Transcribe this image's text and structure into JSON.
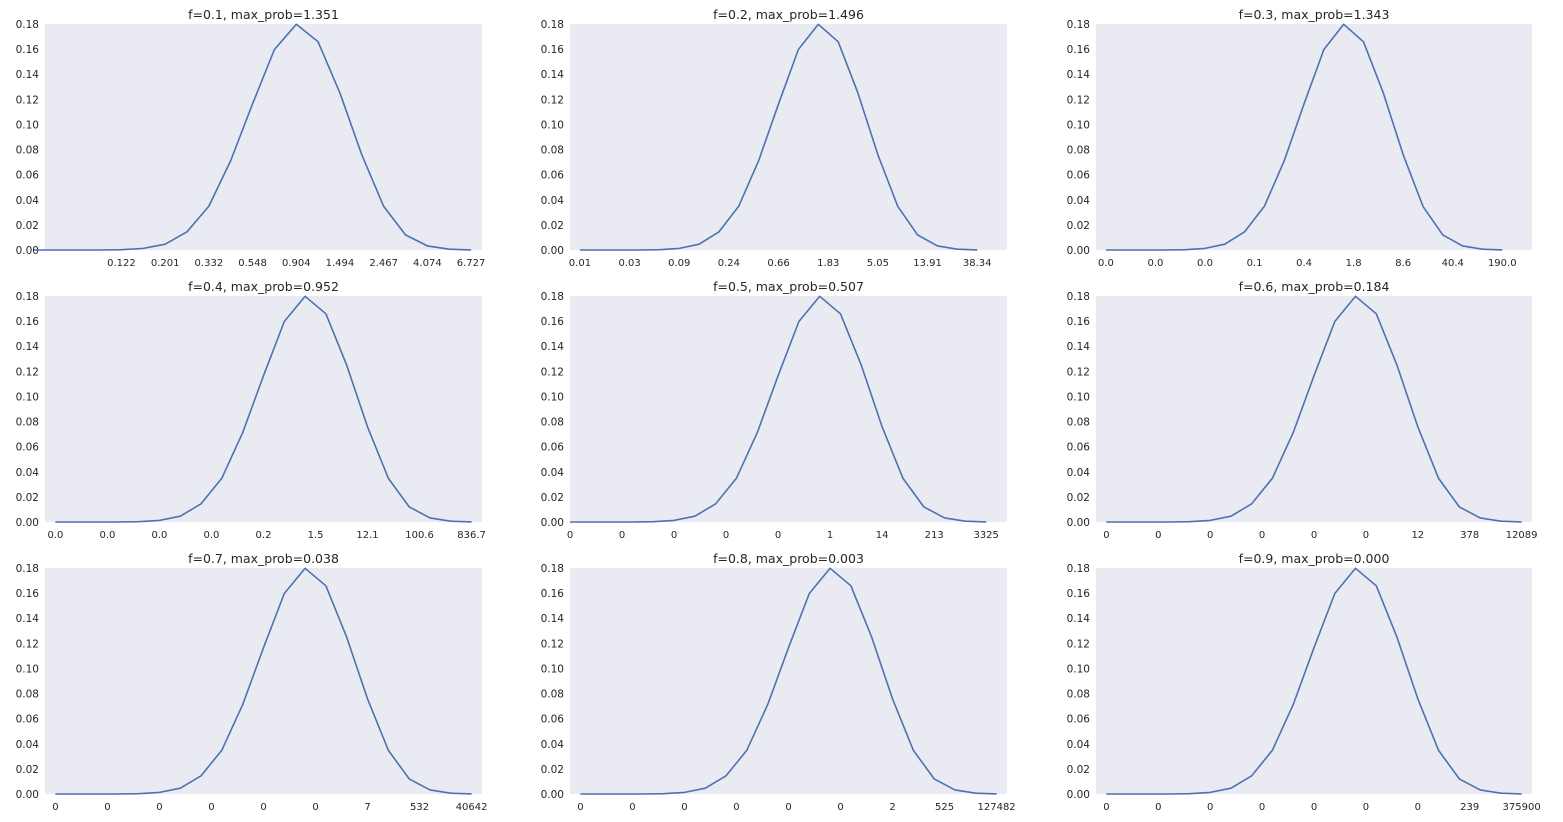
{
  "figure": {
    "colors": {
      "line": "#4c72b0",
      "axes_bg": "#eaeaf2"
    }
  },
  "chart_data": [
    {
      "type": "line",
      "title": "f=0.1, max_prob=1.351",
      "x_tick_labels": [
        "0.122",
        "0.201",
        "0.332",
        "0.548",
        "0.904",
        "1.494",
        "2.467",
        "4.074",
        "6.727"
      ],
      "y_ticks": [
        "0.00",
        "0.02",
        "0.04",
        "0.06",
        "0.08",
        "0.10",
        "0.12",
        "0.14",
        "0.16",
        "0.18"
      ],
      "y": [
        0,
        0,
        0,
        0,
        0.0002,
        0.0013,
        0.0046,
        0.0145,
        0.035,
        0.0712,
        0.1165,
        0.1597,
        0.1798,
        0.1658,
        0.1249,
        0.0758,
        0.0347,
        0.012,
        0.0033,
        0.0006,
        0.0001
      ],
      "xlim": [
        -5.5,
        14.5
      ],
      "ylim": [
        0,
        0.18
      ],
      "grid": false
    },
    {
      "type": "line",
      "title": "f=0.2, max_prob=1.496",
      "x_tick_labels": [
        "0.01",
        "0.03",
        "0.09",
        "0.24",
        "0.66",
        "1.83",
        "5.05",
        "13.91",
        "38.34"
      ],
      "y_ticks": [
        "0.00",
        "0.02",
        "0.04",
        "0.06",
        "0.08",
        "0.10",
        "0.12",
        "0.14",
        "0.16",
        "0.18"
      ],
      "y": [
        0,
        0,
        0,
        0,
        0.0002,
        0.0013,
        0.0046,
        0.0145,
        0.035,
        0.0712,
        0.1165,
        0.1597,
        0.1798,
        0.1658,
        0.1249,
        0.0758,
        0.0347,
        0.012,
        0.0033,
        0.0006,
        0.0001
      ],
      "xlim": [
        -0.5,
        21.5
      ],
      "ylim": [
        0,
        0.18
      ],
      "grid": false
    },
    {
      "type": "line",
      "title": "f=0.3, max_prob=1.343",
      "x_tick_labels": [
        "0.0",
        "0.0",
        "0.0",
        "0.1",
        "0.4",
        "1.8",
        "8.6",
        "40.4",
        "190.0"
      ],
      "y_ticks": [
        "0.00",
        "0.02",
        "0.04",
        "0.06",
        "0.08",
        "0.10",
        "0.12",
        "0.14",
        "0.16",
        "0.18"
      ],
      "y": [
        0,
        0,
        0,
        0,
        0.0002,
        0.0013,
        0.0046,
        0.0145,
        0.035,
        0.0712,
        0.1165,
        0.1597,
        0.1798,
        0.1658,
        0.1249,
        0.0758,
        0.0347,
        0.012,
        0.0033,
        0.0006,
        0.0001
      ],
      "xlim": [
        -0.5,
        21.5
      ],
      "ylim": [
        0,
        0.18
      ],
      "grid": false
    },
    {
      "type": "line",
      "title": "f=0.4, max_prob=0.952",
      "x_tick_labels": [
        "0.0",
        "0.0",
        "0.0",
        "0.0",
        "0.2",
        "1.5",
        "12.1",
        "100.6",
        "836.7"
      ],
      "y_ticks": [
        "0.00",
        "0.02",
        "0.04",
        "0.06",
        "0.08",
        "0.10",
        "0.12",
        "0.14",
        "0.16",
        "0.18"
      ],
      "y": [
        0,
        0,
        0,
        0,
        0.0002,
        0.0013,
        0.0046,
        0.0145,
        0.035,
        0.0712,
        0.1165,
        0.1597,
        0.1798,
        0.1658,
        0.1249,
        0.0758,
        0.0347,
        0.012,
        0.0033,
        0.0006,
        0.0001
      ],
      "xlim": [
        -0.5,
        20.5
      ],
      "ylim": [
        0,
        0.18
      ],
      "grid": false
    },
    {
      "type": "line",
      "title": "f=0.5, max_prob=0.507",
      "x_tick_labels": [
        "0",
        "0",
        "0",
        "0",
        "0",
        "1",
        "14",
        "213",
        "3325"
      ],
      "y_ticks": [
        "0.00",
        "0.02",
        "0.04",
        "0.06",
        "0.08",
        "0.10",
        "0.12",
        "0.14",
        "0.16",
        "0.18"
      ],
      "y": [
        0,
        0,
        0,
        0,
        0.0002,
        0.0013,
        0.0046,
        0.0145,
        0.035,
        0.0712,
        0.1165,
        0.1597,
        0.1798,
        0.1658,
        0.1249,
        0.0758,
        0.0347,
        0.012,
        0.0033,
        0.0006,
        0.0001
      ],
      "xlim": [
        0,
        21
      ],
      "ylim": [
        0,
        0.18
      ],
      "grid": false
    },
    {
      "type": "line",
      "title": "f=0.6, max_prob=0.184",
      "x_tick_labels": [
        "0",
        "0",
        "0",
        "0",
        "0",
        "0",
        "12",
        "378",
        "12089"
      ],
      "y_ticks": [
        "0.00",
        "0.02",
        "0.04",
        "0.06",
        "0.08",
        "0.10",
        "0.12",
        "0.14",
        "0.16",
        "0.18"
      ],
      "y": [
        0,
        0,
        0,
        0,
        0.0002,
        0.0013,
        0.0046,
        0.0145,
        0.035,
        0.0712,
        0.1165,
        0.1597,
        0.1798,
        0.1658,
        0.1249,
        0.0758,
        0.0347,
        0.012,
        0.0033,
        0.0006,
        0.0001
      ],
      "xlim": [
        -0.5,
        20.5
      ],
      "ylim": [
        0,
        0.18
      ],
      "grid": false
    },
    {
      "type": "line",
      "title": "f=0.7, max_prob=0.038",
      "x_tick_labels": [
        "0",
        "0",
        "0",
        "0",
        "0",
        "0",
        "7",
        "532",
        "40642"
      ],
      "y_ticks": [
        "0.00",
        "0.02",
        "0.04",
        "0.06",
        "0.08",
        "0.10",
        "0.12",
        "0.14",
        "0.16",
        "0.18"
      ],
      "y": [
        0,
        0,
        0,
        0,
        0.0002,
        0.0013,
        0.0046,
        0.0145,
        0.035,
        0.0712,
        0.1165,
        0.1597,
        0.1798,
        0.1658,
        0.1249,
        0.0758,
        0.0347,
        0.012,
        0.0033,
        0.0006,
        0.0001
      ],
      "xlim": [
        -0.5,
        20.5
      ],
      "ylim": [
        0,
        0.18
      ],
      "grid": false
    },
    {
      "type": "line",
      "title": "f=0.8, max_prob=0.003",
      "x_tick_labels": [
        "0",
        "0",
        "0",
        "0",
        "0",
        "0",
        "2",
        "525",
        "127482"
      ],
      "y_ticks": [
        "0.00",
        "0.02",
        "0.04",
        "0.06",
        "0.08",
        "0.10",
        "0.12",
        "0.14",
        "0.16",
        "0.18"
      ],
      "y": [
        0,
        0,
        0,
        0,
        0.0002,
        0.0013,
        0.0046,
        0.0145,
        0.035,
        0.0712,
        0.1165,
        0.1597,
        0.1798,
        0.1658,
        0.1249,
        0.0758,
        0.0347,
        0.012,
        0.0033,
        0.0006,
        0.0001
      ],
      "xlim": [
        -0.5,
        20.5
      ],
      "ylim": [
        0,
        0.18
      ],
      "grid": false
    },
    {
      "type": "line",
      "title": "f=0.9, max_prob=0.000",
      "x_tick_labels": [
        "0",
        "0",
        "0",
        "0",
        "0",
        "0",
        "0",
        "239",
        "375900"
      ],
      "y_ticks": [
        "0.00",
        "0.02",
        "0.04",
        "0.06",
        "0.08",
        "0.10",
        "0.12",
        "0.14",
        "0.16",
        "0.18"
      ],
      "y": [
        0,
        0,
        0,
        0,
        0.0002,
        0.0013,
        0.0046,
        0.0145,
        0.035,
        0.0712,
        0.1165,
        0.1597,
        0.1798,
        0.1658,
        0.1249,
        0.0758,
        0.0347,
        0.012,
        0.0033,
        0.0006,
        0.0001
      ],
      "xlim": [
        -0.5,
        20.5
      ],
      "ylim": [
        0,
        0.18
      ],
      "grid": false
    }
  ]
}
